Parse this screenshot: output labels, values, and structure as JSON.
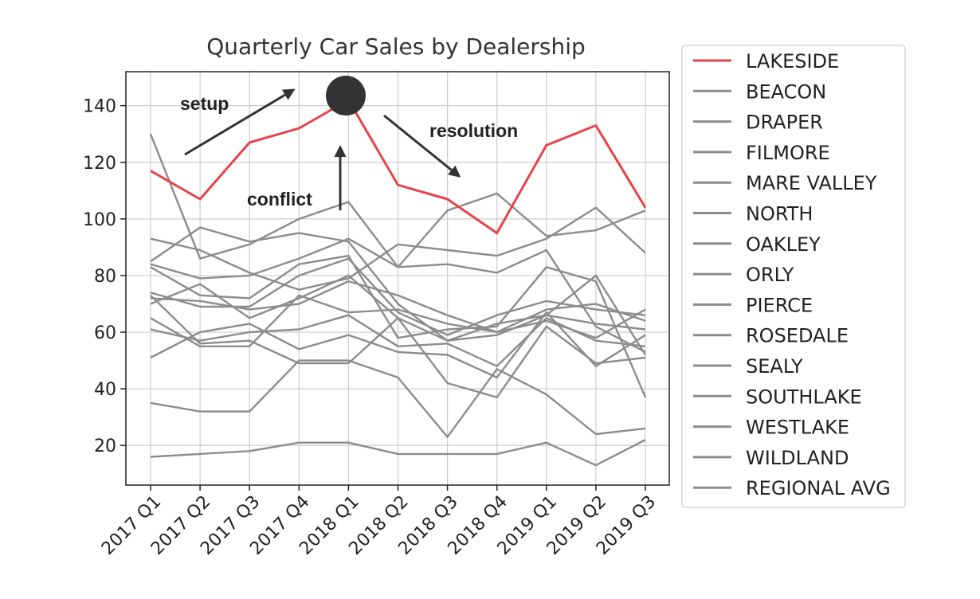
{
  "chart_data": {
    "type": "line",
    "title": "Quarterly Car Sales by Dealership",
    "xlabel": "",
    "ylabel": "",
    "categories": [
      "2017 Q1",
      "2017 Q2",
      "2017 Q3",
      "2017 Q4",
      "2018 Q1",
      "2018 Q2",
      "2018 Q3",
      "2018 Q4",
      "2019 Q1",
      "2019 Q2",
      "2019 Q3"
    ],
    "ylim": [
      6,
      152
    ],
    "yticks": [
      20,
      40,
      60,
      80,
      100,
      120,
      140
    ],
    "grid": true,
    "legend_position": "outside-right",
    "highlight_color": "#e8434a",
    "other_color": "#8c8c8c",
    "series": [
      {
        "name": "LAKESIDE",
        "highlight": true,
        "values": [
          117,
          107,
          127,
          132,
          142,
          112,
          107,
          95,
          126,
          133,
          104
        ]
      },
      {
        "name": "BEACON",
        "values": [
          130,
          86,
          91,
          100,
          106,
          83,
          103,
          109,
          94,
          96,
          103
        ]
      },
      {
        "name": "DRAPER",
        "values": [
          93,
          89,
          81,
          75,
          79,
          91,
          89,
          87,
          93,
          104,
          88
        ]
      },
      {
        "name": "FILMORE",
        "values": [
          85,
          97,
          92,
          95,
          92,
          70,
          57,
          63,
          66,
          80,
          52
        ]
      },
      {
        "name": "MARE VALLEY",
        "values": [
          84,
          79,
          80,
          86,
          93,
          83,
          84,
          81,
          89,
          62,
          53
        ]
      },
      {
        "name": "NORTH",
        "values": [
          83,
          73,
          72,
          84,
          87,
          58,
          61,
          62,
          83,
          78,
          37
        ]
      },
      {
        "name": "OAKLEY",
        "values": [
          74,
          69,
          69,
          80,
          86,
          67,
          59,
          66,
          71,
          68,
          66
        ]
      },
      {
        "name": "ORLY",
        "values": [
          72,
          71,
          68,
          70,
          78,
          73,
          66,
          60,
          68,
          70,
          64
        ]
      },
      {
        "name": "PIERCE",
        "values": [
          70,
          77,
          65,
          72,
          80,
          65,
          57,
          59,
          66,
          63,
          61
        ]
      },
      {
        "name": "ROSEDALE",
        "values": [
          65,
          55,
          55,
          73,
          67,
          68,
          63,
          60,
          64,
          58,
          68
        ]
      },
      {
        "name": "SEALY",
        "values": [
          61,
          57,
          60,
          61,
          66,
          55,
          56,
          48,
          65,
          57,
          55
        ]
      },
      {
        "name": "SOUTHLAKE",
        "values": [
          51,
          60,
          63,
          54,
          59,
          53,
          52,
          44,
          67,
          48,
          59
        ]
      },
      {
        "name": "WESTLAKE",
        "values": [
          73,
          56,
          57,
          49,
          49,
          65,
          42,
          37,
          62,
          49,
          51
        ]
      },
      {
        "name": "WILDLAND",
        "values": [
          35,
          32,
          32,
          50,
          50,
          44,
          23,
          47,
          38,
          24,
          26
        ]
      },
      {
        "name": "REGIONAL AVG",
        "values": [
          16,
          17,
          18,
          21,
          21,
          17,
          17,
          17,
          21,
          13,
          22
        ]
      }
    ],
    "annotations": {
      "setup": "setup",
      "conflict": "conflict",
      "resolution": "resolution",
      "climax_marker_color": "#333333"
    }
  }
}
